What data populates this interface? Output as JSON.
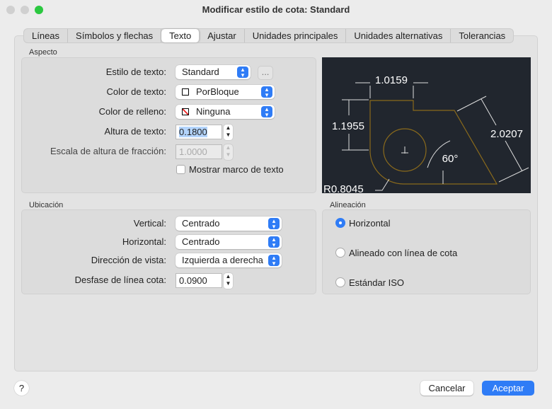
{
  "window": {
    "title": "Modificar estilo de cota: Standard"
  },
  "tabs": [
    {
      "label": "Líneas"
    },
    {
      "label": "Símbolos y flechas"
    },
    {
      "label": "Texto"
    },
    {
      "label": "Ajustar"
    },
    {
      "label": "Unidades principales"
    },
    {
      "label": "Unidades alternativas"
    },
    {
      "label": "Tolerancias"
    }
  ],
  "selected_tab": "Texto",
  "aspecto": {
    "title": "Aspecto",
    "estilo_label": "Estilo de texto:",
    "estilo_value": "Standard",
    "more_label": "...",
    "color_label": "Color de texto:",
    "color_value": "PorBloque",
    "relleno_label": "Color de relleno:",
    "relleno_value": "Ninguna",
    "altura_label": "Altura de texto:",
    "altura_value": "0.1800",
    "escala_label": "Escala de altura de fracción:",
    "escala_value": "1.0000",
    "marco_label": "Mostrar marco de texto",
    "marco_checked": false
  },
  "preview": {
    "dim_top": "1.0159",
    "dim_left": "1.1955",
    "dim_right": "2.0207",
    "angle": "60°",
    "radius": "R0.8045",
    "bg": "#21262e",
    "shape_color": "#8a6a1c"
  },
  "ubicacion": {
    "title": "Ubicación",
    "vertical_label": "Vertical:",
    "vertical_value": "Centrado",
    "horizontal_label": "Horizontal:",
    "horizontal_value": "Centrado",
    "direccion_label": "Dirección de vista:",
    "direccion_value": "Izquierda a derecha",
    "desfase_label": "Desfase de línea cota:",
    "desfase_value": "0.0900"
  },
  "alineacion": {
    "title": "Alineación",
    "options": [
      {
        "label": "Horizontal",
        "selected": true
      },
      {
        "label": "Alineado con línea de cota",
        "selected": false
      },
      {
        "label": "Estándar ISO",
        "selected": false
      }
    ]
  },
  "footer": {
    "help": "?",
    "cancel": "Cancelar",
    "ok": "Aceptar"
  },
  "colors": {
    "accent": "#2f7cf6"
  }
}
